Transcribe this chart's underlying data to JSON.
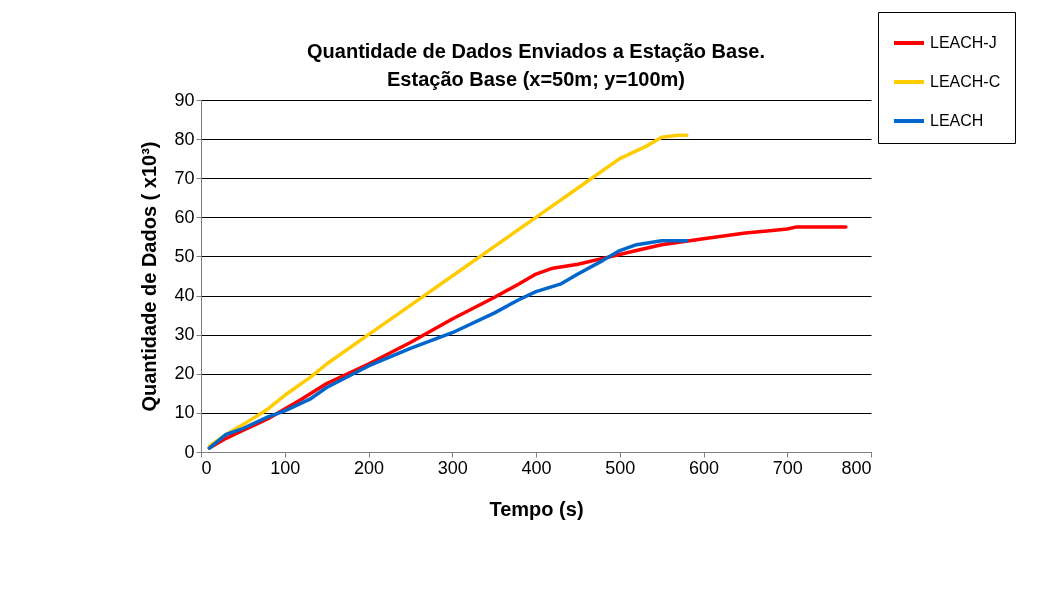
{
  "chart_data": {
    "type": "line",
    "title": "Quantidade de Dados Enviados a Estação Base.",
    "subtitle": "Estação Base (x=50m;  y=100m)",
    "xlabel": "Tempo (s)",
    "ylabel": "Quantidade de Dados ( x10³)",
    "series": [
      {
        "name": "LEACH-J",
        "color": "#ff0000",
        "x": [
          10,
          30,
          50,
          80,
          100,
          120,
          150,
          200,
          250,
          300,
          350,
          380,
          400,
          420,
          450,
          480,
          500,
          520,
          550,
          600,
          650,
          700,
          710,
          770
        ],
        "values": [
          1,
          3.5,
          5.5,
          8.5,
          11,
          13.5,
          17.5,
          22.5,
          28,
          34,
          39.5,
          43,
          45.5,
          47,
          48,
          49.5,
          50.5,
          51.5,
          53,
          54.5,
          56,
          57,
          57.5,
          57.5
        ]
      },
      {
        "name": "LEACH-C",
        "color": "#ffcc00",
        "x": [
          10,
          30,
          50,
          80,
          100,
          130,
          150,
          200,
          250,
          300,
          350,
          400,
          450,
          500,
          530,
          550,
          570,
          580
        ],
        "values": [
          1.5,
          4.5,
          7,
          11,
          14.5,
          19,
          22.5,
          30,
          37.5,
          45,
          52.5,
          60,
          67.5,
          75,
          78,
          80.5,
          81,
          81
        ]
      },
      {
        "name": "LEACH",
        "color": "#0066cc",
        "x": [
          10,
          30,
          50,
          80,
          100,
          130,
          150,
          200,
          250,
          300,
          350,
          380,
          400,
          430,
          450,
          480,
          500,
          520,
          550,
          580
        ],
        "values": [
          1,
          4.5,
          6,
          9,
          10.5,
          13.5,
          16.5,
          22,
          26.5,
          30.5,
          35.5,
          39,
          41,
          43,
          45.5,
          49,
          51.5,
          53,
          54,
          54
        ]
      }
    ],
    "xlim": [
      0,
      800
    ],
    "xticks": [
      0,
      100,
      200,
      300,
      400,
      500,
      600,
      700,
      800
    ],
    "ylim": [
      0,
      90
    ],
    "yticks": [
      0,
      10,
      20,
      30,
      40,
      50,
      60,
      70,
      80,
      90
    ],
    "grid": "y",
    "legend": "top right"
  }
}
